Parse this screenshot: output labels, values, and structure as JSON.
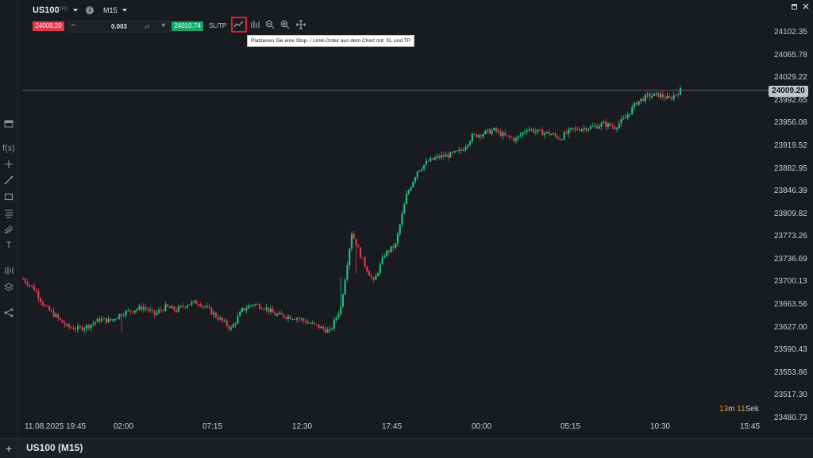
{
  "header": {
    "symbol": "US100",
    "symbol_suffix": "CFD",
    "timeframe": "M15",
    "info_glyph": "i",
    "bid_price": "24009.20",
    "ask_price": "24010.74",
    "quantity": "0.003",
    "minus_label": "−",
    "plus_label": "+",
    "sltp_label": "SL/TP",
    "icons": [
      "line-order-icon",
      "indicator-wave-icon",
      "zoom-out-icon",
      "zoom-in-icon",
      "crosshair-move-icon"
    ]
  },
  "tooltip": {
    "text": "Platzieren Sie eine Stop- / Limit-Order aus dem Chart mit: SL und TP"
  },
  "sidebar": {
    "fx_label": "f(x)",
    "text_tool_label": "T",
    "items": [
      "collapse-panel-icon",
      "function-icon",
      "crosshair-icon",
      "trendline-icon",
      "rectangle-icon",
      "fib-icon",
      "pitchfork-icon",
      "text-icon",
      "indicators-icon",
      "layers-icon",
      "share-icon"
    ]
  },
  "colors": {
    "background": "#181c21",
    "up": "#1fbf7a",
    "down": "#e0384c",
    "price_line": "#5b626b",
    "countdown": "#d99a23"
  },
  "current_price_label": "24009.20",
  "countdown": {
    "minutes": "13",
    "minutes_unit": "m",
    "seconds": "11",
    "seconds_unit": "Sek"
  },
  "footer": {
    "add_label": "+",
    "title": "US100 (M15)"
  },
  "chart_data": {
    "type": "candlestick",
    "timeframe": "M15",
    "current_price": 24009.2,
    "y_ticks": [
      "24102.35",
      "24065.78",
      "24029.22",
      "23992.65",
      "23956.08",
      "23919.52",
      "23882.95",
      "23846.39",
      "23809.82",
      "23773.26",
      "23736.69",
      "23700.13",
      "23663.56",
      "23627.00",
      "23590.43",
      "23553.86",
      "23517.30",
      "23480.73"
    ],
    "y_range": [
      23480.73,
      24102.35
    ],
    "x_ticks": [
      "11.08.2025 19:45",
      "02:00",
      "07:15",
      "12:30",
      "17:45",
      "00:00",
      "05:15",
      "10:30",
      "15:45"
    ],
    "candle_close_path": [
      [
        0,
        23705
      ],
      [
        5,
        23690
      ],
      [
        10,
        23660
      ],
      [
        15,
        23645
      ],
      [
        20,
        23628
      ],
      [
        25,
        23625
      ],
      [
        30,
        23630
      ],
      [
        35,
        23640
      ],
      [
        40,
        23638
      ],
      [
        45,
        23650
      ],
      [
        50,
        23655
      ],
      [
        55,
        23660
      ],
      [
        60,
        23648
      ],
      [
        65,
        23660
      ],
      [
        70,
        23655
      ],
      [
        75,
        23665
      ],
      [
        80,
        23668
      ],
      [
        85,
        23655
      ],
      [
        90,
        23640
      ],
      [
        95,
        23625
      ],
      [
        100,
        23655
      ],
      [
        105,
        23665
      ],
      [
        110,
        23660
      ],
      [
        115,
        23648
      ],
      [
        120,
        23645
      ],
      [
        125,
        23643
      ],
      [
        130,
        23635
      ],
      [
        135,
        23628
      ],
      [
        140,
        23620
      ],
      [
        145,
        23660
      ],
      [
        150,
        23780
      ],
      [
        155,
        23735
      ],
      [
        160,
        23700
      ],
      [
        165,
        23745
      ],
      [
        170,
        23760
      ],
      [
        175,
        23840
      ],
      [
        180,
        23880
      ],
      [
        185,
        23895
      ],
      [
        190,
        23902
      ],
      [
        195,
        23905
      ],
      [
        200,
        23912
      ],
      [
        205,
        23935
      ],
      [
        210,
        23940
      ],
      [
        215,
        23945
      ],
      [
        220,
        23935
      ],
      [
        225,
        23930
      ],
      [
        230,
        23948
      ],
      [
        235,
        23942
      ],
      [
        240,
        23940
      ],
      [
        245,
        23932
      ],
      [
        250,
        23945
      ],
      [
        255,
        23948
      ],
      [
        260,
        23950
      ],
      [
        265,
        23955
      ],
      [
        270,
        23950
      ],
      [
        275,
        23965
      ],
      [
        280,
        23990
      ],
      [
        285,
        24000
      ],
      [
        290,
        24002
      ],
      [
        295,
        23995
      ],
      [
        300,
        24009.2
      ]
    ]
  }
}
